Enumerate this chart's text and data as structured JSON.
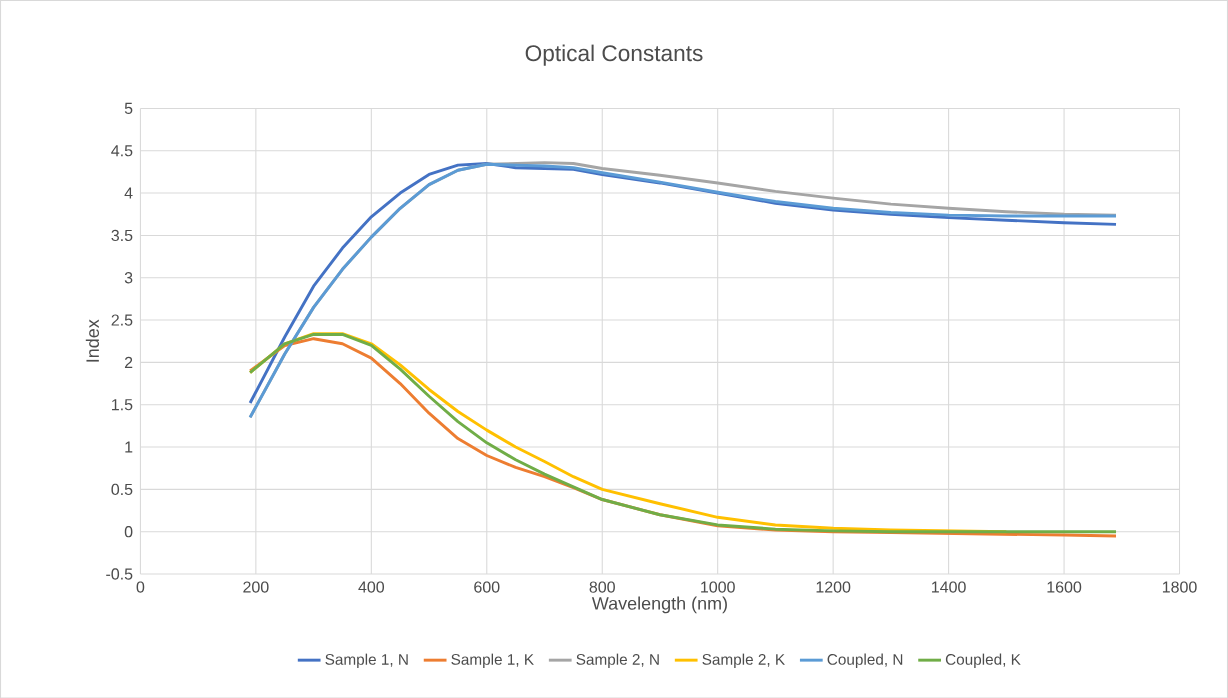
{
  "chart_data": {
    "type": "line",
    "title": "Optical Constants",
    "xlabel": "Wavelength (nm)",
    "ylabel": "Index",
    "x": [
      190,
      250,
      300,
      350,
      400,
      450,
      500,
      550,
      600,
      650,
      700,
      750,
      800,
      900,
      1000,
      1100,
      1200,
      1300,
      1400,
      1500,
      1600,
      1690
    ],
    "series": [
      {
        "name": "Sample 1, N",
        "color": "#4472c4",
        "values": [
          1.52,
          2.3,
          2.9,
          3.35,
          3.72,
          4.0,
          4.22,
          4.33,
          4.35,
          4.3,
          4.29,
          4.28,
          4.22,
          4.12,
          4.0,
          3.88,
          3.8,
          3.75,
          3.71,
          3.68,
          3.65,
          3.63
        ]
      },
      {
        "name": "Sample 1, K",
        "color": "#ed7d31",
        "values": [
          1.9,
          2.2,
          2.28,
          2.22,
          2.05,
          1.75,
          1.4,
          1.1,
          0.9,
          0.76,
          0.65,
          0.52,
          0.38,
          0.2,
          0.07,
          0.02,
          0.0,
          -0.01,
          -0.02,
          -0.03,
          -0.04,
          -0.05
        ]
      },
      {
        "name": "Sample 2, N",
        "color": "#a5a5a5",
        "values": [
          1.35,
          2.1,
          2.65,
          3.1,
          3.48,
          3.82,
          4.1,
          4.27,
          4.34,
          4.35,
          4.36,
          4.35,
          4.29,
          4.21,
          4.12,
          4.02,
          3.94,
          3.87,
          3.82,
          3.78,
          3.75,
          3.74
        ]
      },
      {
        "name": "Sample 2, K",
        "color": "#ffc000",
        "values": [
          1.88,
          2.22,
          2.34,
          2.34,
          2.22,
          1.97,
          1.68,
          1.42,
          1.2,
          1.0,
          0.83,
          0.65,
          0.5,
          0.33,
          0.17,
          0.08,
          0.04,
          0.02,
          0.01,
          0.0,
          null,
          null
        ]
      },
      {
        "name": "Coupled, N",
        "color": "#5b9bd5",
        "values": [
          1.35,
          2.1,
          2.65,
          3.1,
          3.48,
          3.82,
          4.1,
          4.27,
          4.34,
          4.33,
          4.32,
          4.3,
          4.24,
          4.13,
          4.01,
          3.9,
          3.82,
          3.77,
          3.74,
          3.73,
          3.73,
          3.73
        ]
      },
      {
        "name": "Coupled, K",
        "color": "#70ad47",
        "values": [
          1.88,
          2.22,
          2.33,
          2.33,
          2.2,
          1.92,
          1.6,
          1.3,
          1.05,
          0.85,
          0.68,
          0.53,
          0.38,
          0.2,
          0.08,
          0.03,
          0.01,
          0.0,
          0.0,
          0.0,
          0.0,
          0.0
        ]
      }
    ],
    "xlim": [
      0,
      1800
    ],
    "xticks": [
      0,
      200,
      400,
      600,
      800,
      1000,
      1200,
      1400,
      1600,
      1800
    ],
    "ylim": [
      -0.5,
      5
    ],
    "yticks": [
      -0.5,
      0,
      0.5,
      1,
      1.5,
      2,
      2.5,
      3,
      3.5,
      4,
      4.5,
      5
    ],
    "grid": true,
    "legend": "bottom",
    "marker": "none",
    "line_style": "solid"
  }
}
